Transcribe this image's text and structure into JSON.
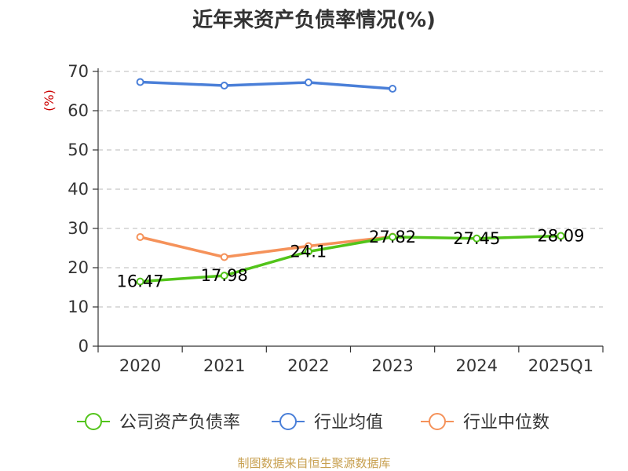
{
  "chart_data": {
    "type": "line",
    "title": "近年来资产负债率情况(%)",
    "ylabel": "(%)",
    "xlabel": "",
    "categories": [
      "2020",
      "2021",
      "2022",
      "2023",
      "2024",
      "2025Q1"
    ],
    "ylim": [
      0,
      70
    ],
    "yticks": [
      0,
      10,
      20,
      30,
      40,
      50,
      60,
      70
    ],
    "grid": true,
    "legend_position": "bottom",
    "series": [
      {
        "name": "公司资产负债率",
        "color": "#52c41a",
        "values": [
          16.47,
          17.98,
          24.1,
          27.82,
          27.45,
          28.09
        ],
        "data_labels": [
          "16.47",
          "17.98",
          "24.1",
          "27.82",
          "27.45",
          "28.09"
        ]
      },
      {
        "name": "行业均值",
        "color": "#4a7fd8",
        "values": [
          67.3,
          66.4,
          67.2,
          65.6,
          null,
          null
        ]
      },
      {
        "name": "行业中位数",
        "color": "#f5925a",
        "values": [
          27.8,
          22.7,
          25.5,
          27.9,
          null,
          null
        ]
      }
    ],
    "source": "制图数据来自恒生聚源数据库"
  }
}
